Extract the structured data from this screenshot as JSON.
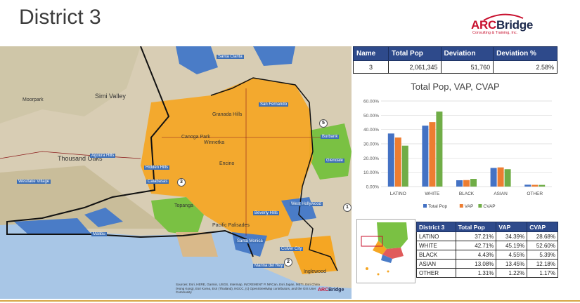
{
  "slide": {
    "title": "District 3"
  },
  "logo": {
    "arc": "ARC",
    "bridge": "Bridge",
    "subtitle": "Consulting & Training, Inc."
  },
  "map": {
    "labels": [
      "Simi Valley",
      "Moorpark",
      "Thousand Oaks",
      "Hidden Hills",
      "Calabasas",
      "Topanga",
      "Malibu",
      "Westlake Village",
      "Agoura Hills",
      "Santa Clarita",
      "San Fernando",
      "Granada Hills",
      "Canoga Park",
      "Winnetka",
      "Encino",
      "Burbank",
      "Glendale",
      "West Hollywood",
      "Beverly Hills",
      "Santa Monica",
      "Culver City",
      "Inglewood",
      "Marina del Rey",
      "Pacific Palisades"
    ],
    "markers": [
      "3",
      "5",
      "2",
      "1"
    ],
    "attribution": "Sources: Esri, HERE, Garmin, USGS, Intermap, INCREMENT P, NRCan, Esri Japan, METI, Esri China (Hong Kong), Esri Korea, Esri (Thailand), NGCC, (c) OpenStreetMap contributors, and the GIS User Community",
    "watermark_arc": "ARC",
    "watermark_bridge": "Bridge",
    "colors": {
      "orange": "#f5a623",
      "blue": "#4a7cc7",
      "green": "#7ac143",
      "tan": "#d9b98a",
      "water": "#a8c6e6"
    }
  },
  "summary": {
    "headers": [
      "Name",
      "Total Pop",
      "Deviation",
      "Deviation %"
    ],
    "row": [
      "3",
      "2,061,345",
      "51,760",
      "2.58%"
    ]
  },
  "chart_data": {
    "type": "bar",
    "title": "Total Pop, VAP, CVAP",
    "categories": [
      "LATINO",
      "WHITE",
      "BLACK",
      "ASIAN",
      "OTHER"
    ],
    "series": [
      {
        "name": "Total Pop",
        "values": [
          37.21,
          42.71,
          4.43,
          13.08,
          1.31
        ],
        "color": "#4472c4"
      },
      {
        "name": "VAP",
        "values": [
          34.39,
          45.19,
          4.55,
          13.45,
          1.22
        ],
        "color": "#ed7d31"
      },
      {
        "name": "CVAP",
        "values": [
          28.68,
          52.6,
          5.39,
          12.18,
          1.17
        ],
        "color": "#70ad47"
      }
    ],
    "yticks": [
      "0.00%",
      "10.00%",
      "20.00%",
      "30.00%",
      "40.00%",
      "50.00%",
      "60.00%"
    ],
    "ylim": [
      0,
      60
    ],
    "grid": true,
    "legend": "bottom"
  },
  "district_table": {
    "headers": [
      "District 3",
      "Total Pop",
      "VAP",
      "CVAP"
    ],
    "rows": [
      [
        "LATINO",
        "37.21%",
        "34.39%",
        "28.68%"
      ],
      [
        "WHITE",
        "42.71%",
        "45.19%",
        "52.60%"
      ],
      [
        "BLACK",
        "4.43%",
        "4.55%",
        "5.39%"
      ],
      [
        "ASIAN",
        "13.08%",
        "13.45%",
        "12.18%"
      ],
      [
        "OTHER",
        "1.31%",
        "1.22%",
        "1.17%"
      ]
    ]
  }
}
